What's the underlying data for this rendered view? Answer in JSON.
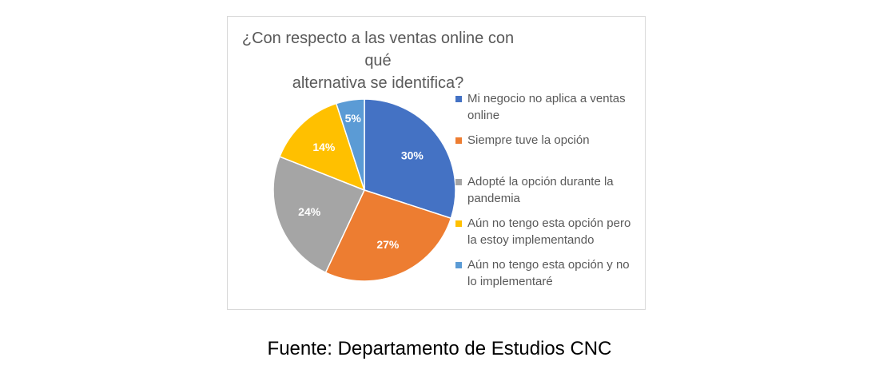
{
  "chart_data": {
    "type": "pie",
    "title_lines": [
      "¿Con respecto a las ventas online con qué",
      "alternativa se identifica?"
    ],
    "slices": [
      {
        "label": "Mi negocio no aplica a ventas online",
        "legend_lines": [
          "Mi negocio no aplica a ventas",
          "online"
        ],
        "value": 30,
        "display": "30%",
        "color": "#4472c4"
      },
      {
        "label": "Siempre tuve la opción",
        "legend_lines": [
          "Siempre tuve la opción"
        ],
        "value": 27,
        "display": "27%",
        "color": "#ed7d31"
      },
      {
        "label": "Adopté la opción durante la pandemia",
        "legend_lines": [
          "Adopté la opción durante la",
          "pandemia"
        ],
        "value": 24,
        "display": "24%",
        "color": "#a5a5a5"
      },
      {
        "label": "Aún no tengo esta opción pero la estoy implementando",
        "legend_lines": [
          "Aún no tengo esta opción pero",
          "la estoy implementando"
        ],
        "value": 14,
        "display": "14%",
        "color": "#ffc000"
      },
      {
        "label": "Aún no tengo esta opción y no lo implementaré",
        "legend_lines": [
          "Aún no tengo esta opción y no",
          "lo implementaré"
        ],
        "value": 5,
        "display": "5%",
        "color": "#5b9bd5"
      }
    ],
    "legend_position": "right",
    "start_angle": "12 o'clock, clockwise"
  },
  "caption": "Fuente: Departamento de Estudios CNC"
}
